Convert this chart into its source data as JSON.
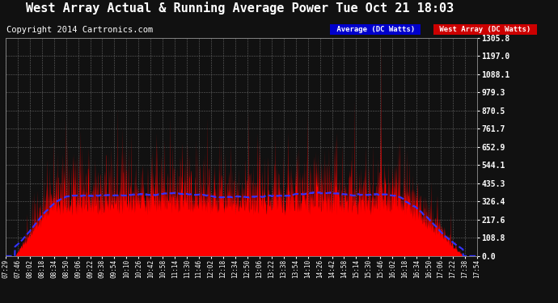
{
  "title": "West Array Actual & Running Average Power Tue Oct 21 18:03",
  "copyright": "Copyright 2014 Cartronics.com",
  "legend_labels": [
    "Average (DC Watts)",
    "West Array (DC Watts)"
  ],
  "yticks": [
    0.0,
    108.8,
    217.6,
    326.4,
    435.3,
    544.1,
    652.9,
    761.7,
    870.5,
    979.3,
    1088.1,
    1197.0,
    1305.8
  ],
  "ylim": [
    0.0,
    1305.8
  ],
  "xtick_labels": [
    "07:29",
    "07:46",
    "08:02",
    "08:18",
    "08:34",
    "08:50",
    "09:06",
    "09:22",
    "09:38",
    "09:54",
    "10:10",
    "10:26",
    "10:42",
    "10:58",
    "11:14",
    "11:30",
    "11:46",
    "12:02",
    "12:18",
    "12:34",
    "12:50",
    "13:06",
    "13:22",
    "13:38",
    "13:54",
    "14:10",
    "14:26",
    "14:42",
    "14:58",
    "15:14",
    "15:30",
    "15:46",
    "16:02",
    "16:18",
    "16:34",
    "16:50",
    "17:06",
    "17:22",
    "17:38",
    "17:54"
  ],
  "bg_color": "#111111",
  "grid_color": "#666666",
  "title_color": "#ffffff",
  "tick_color": "#ffffff",
  "red_fill": "#ff0000",
  "blue_line": "#3333ff",
  "title_fontsize": 11,
  "copyright_fontsize": 7.5,
  "avg_line_color": "#5555ff"
}
